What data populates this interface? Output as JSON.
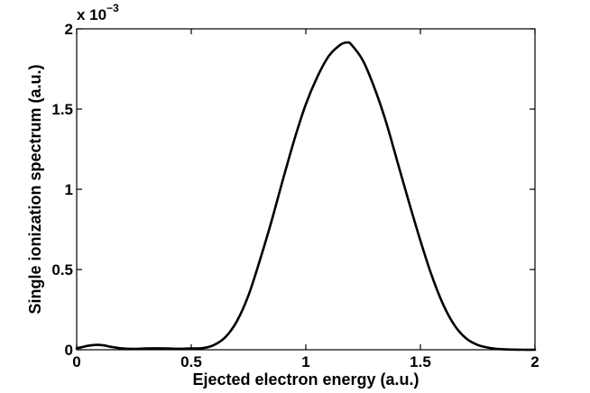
{
  "chart_data": {
    "type": "line",
    "title": "",
    "xlabel": "Ejected electron energy (a.u.)",
    "ylabel": "Single ionization spectrum (a.u.)",
    "xlim": [
      0,
      2
    ],
    "ylim": [
      0,
      2
    ],
    "x_ticks": [
      "0",
      "0.5",
      "1",
      "1.5",
      "2"
    ],
    "y_ticks": [
      "0",
      "0.5",
      "1",
      "1.5",
      "2"
    ],
    "y_multiplier_base": "x 10",
    "y_multiplier_exp": "−3",
    "grid": false,
    "legend": "none",
    "line_color": "#000000",
    "series": [
      {
        "x": [
          0,
          0.02,
          0.05,
          0.08,
          0.1,
          0.12,
          0.15,
          0.2,
          0.25,
          0.3,
          0.35,
          0.4,
          0.45,
          0.5,
          0.55,
          0.6,
          0.65,
          0.7,
          0.75,
          0.8,
          0.85,
          0.9,
          0.95,
          1.0,
          1.05,
          1.1,
          1.15,
          1.18,
          1.2,
          1.25,
          1.3,
          1.35,
          1.4,
          1.45,
          1.5,
          1.55,
          1.6,
          1.65,
          1.7,
          1.75,
          1.8,
          1.85,
          1.9,
          1.95,
          2.0
        ],
        "values": [
          0.01,
          0.015,
          0.025,
          0.03,
          0.03,
          0.027,
          0.018,
          0.008,
          0.005,
          0.008,
          0.009,
          0.008,
          0.006,
          0.008,
          0.01,
          0.03,
          0.08,
          0.18,
          0.34,
          0.56,
          0.8,
          1.06,
          1.31,
          1.53,
          1.7,
          1.83,
          1.9,
          1.915,
          1.9,
          1.8,
          1.63,
          1.42,
          1.17,
          0.92,
          0.68,
          0.46,
          0.28,
          0.15,
          0.07,
          0.03,
          0.012,
          0.004,
          0.001,
          0.0,
          0.0
        ]
      }
    ]
  }
}
